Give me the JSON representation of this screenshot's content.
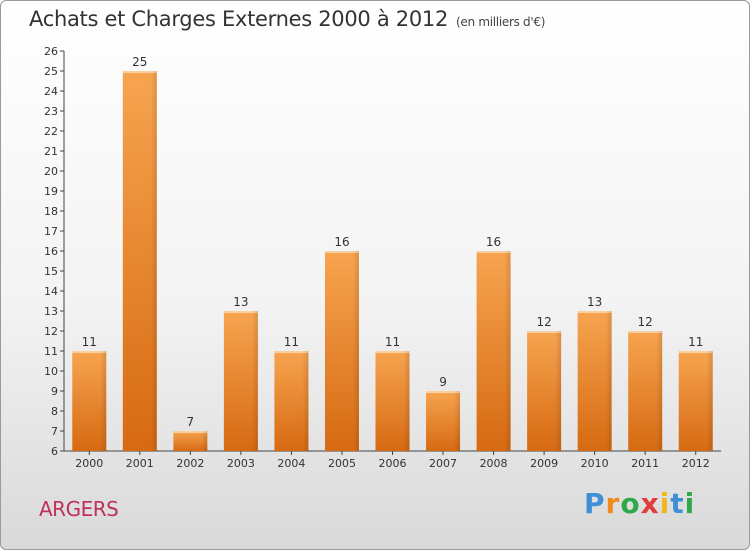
{
  "title": "Achats et Charges Externes 2000 à 2012",
  "unit": "(en milliers d'€)",
  "place": "ARGERS",
  "logo": {
    "letters": [
      "P",
      "r",
      "o",
      "x",
      "i",
      "t",
      "i"
    ],
    "colors": [
      "#3d8fd6",
      "#f08a1c",
      "#2ea84a",
      "#e23b3b",
      "#f0b81c",
      "#3d8fd6",
      "#2ea84a"
    ]
  },
  "chart_data": {
    "type": "bar",
    "categories": [
      "2000",
      "2001",
      "2002",
      "2003",
      "2004",
      "2005",
      "2006",
      "2007",
      "2008",
      "2009",
      "2010",
      "2011",
      "2012"
    ],
    "values": [
      11,
      25,
      7,
      13,
      11,
      16,
      11,
      9,
      16,
      12,
      13,
      12,
      11
    ],
    "ylim": [
      6,
      26
    ],
    "yticks": [
      6,
      7,
      8,
      9,
      10,
      11,
      12,
      13,
      14,
      15,
      16,
      17,
      18,
      19,
      20,
      21,
      22,
      23,
      24,
      25,
      26
    ],
    "bar_color": "#f0902e",
    "grid": false,
    "data_labels": true
  }
}
